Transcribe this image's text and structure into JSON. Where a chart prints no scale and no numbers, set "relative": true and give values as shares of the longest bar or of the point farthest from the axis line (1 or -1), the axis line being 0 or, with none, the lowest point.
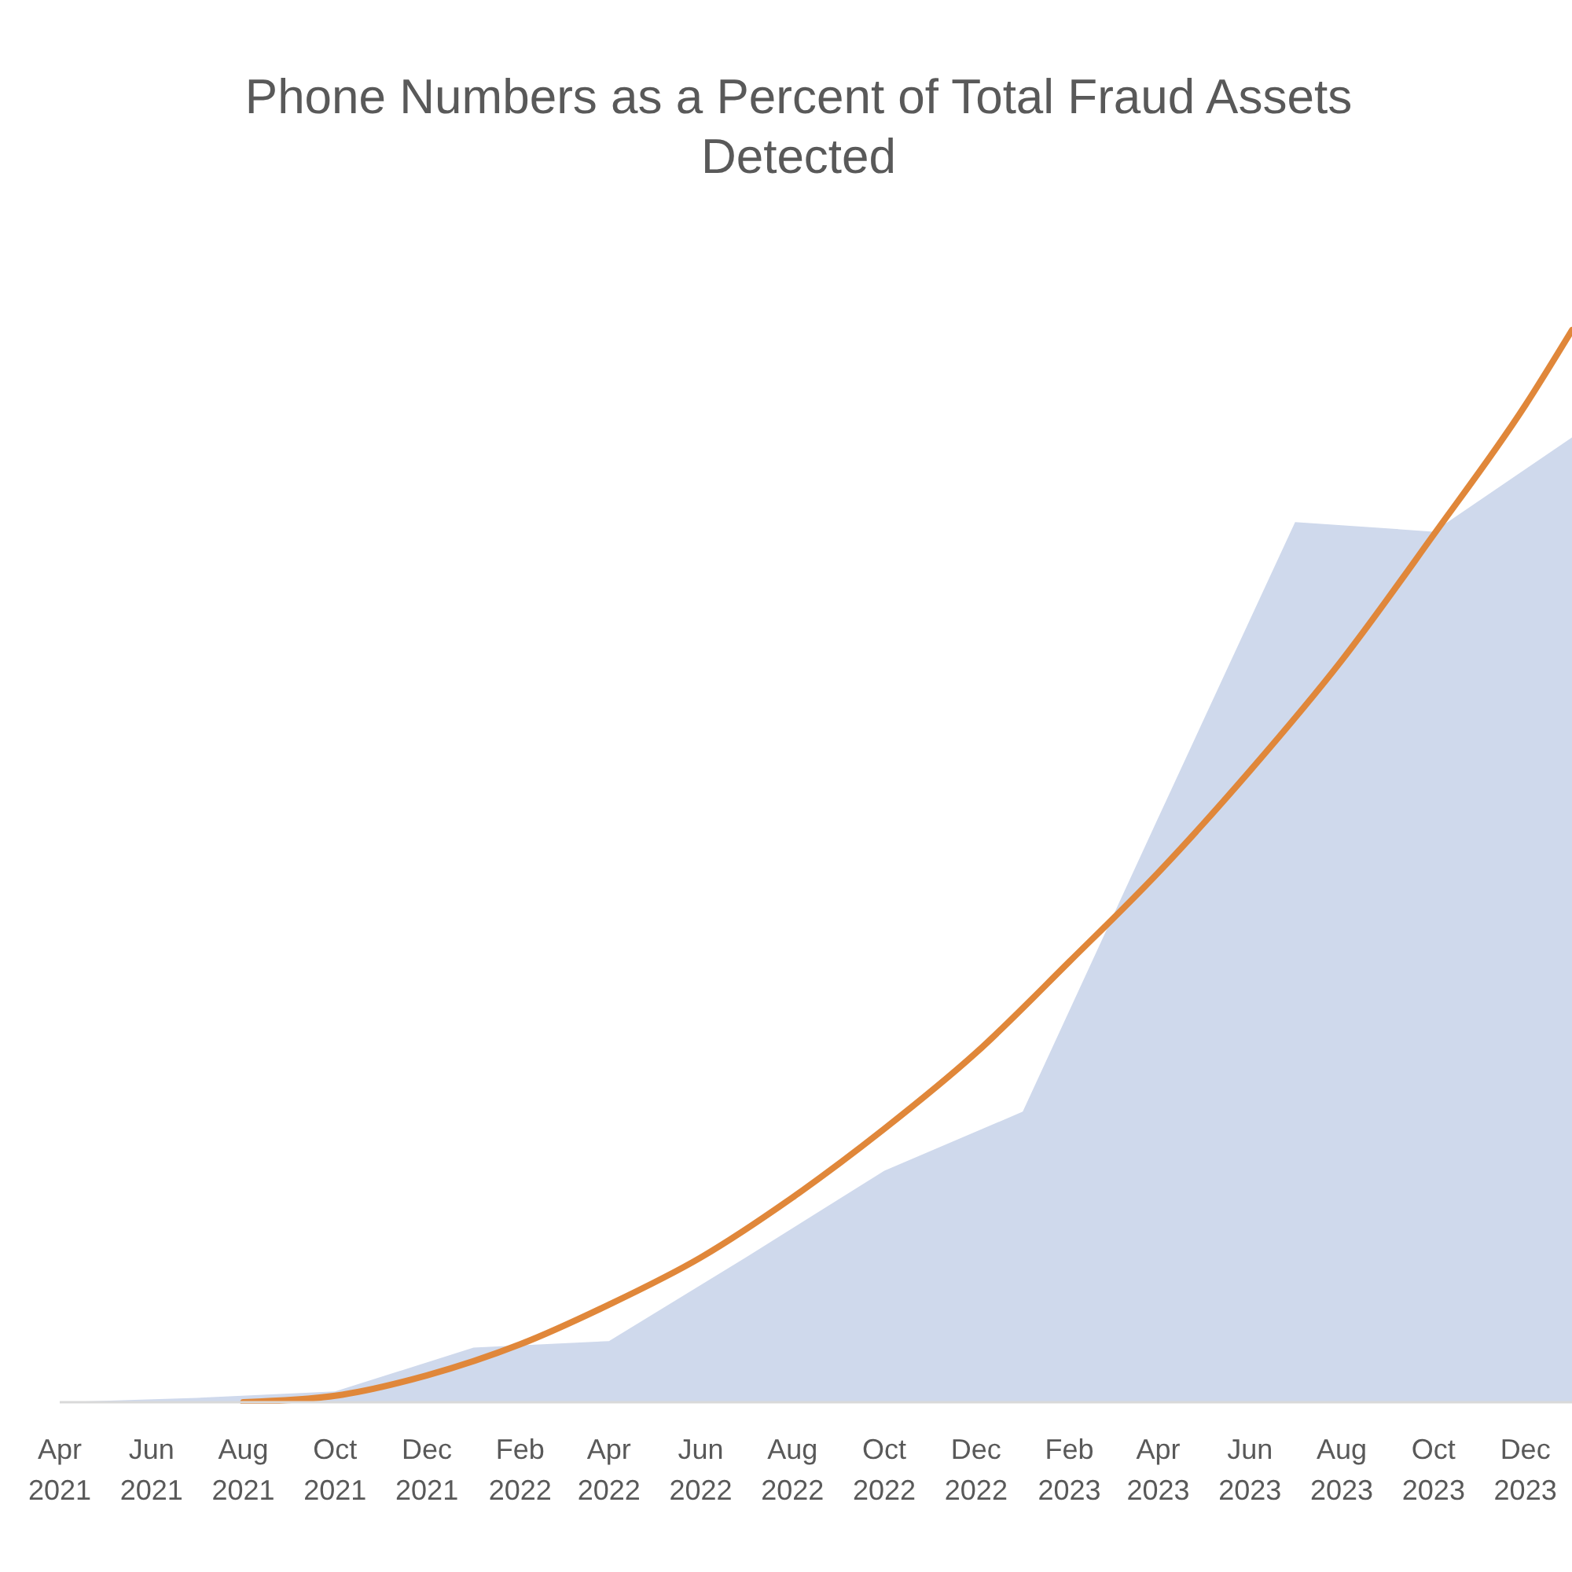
{
  "chart_data": {
    "type": "area",
    "title": "Phone Numbers as a Percent of Total Fraud Assets Detected",
    "relative": true,
    "xlim": [
      "2021-04-01",
      "2024-01-01"
    ],
    "xticks": [
      {
        "value": "2021-04-01",
        "label": "Apr 2021"
      },
      {
        "value": "2021-06-01",
        "label": "Jun 2021"
      },
      {
        "value": "2021-08-01",
        "label": "Aug 2021"
      },
      {
        "value": "2021-10-01",
        "label": "Oct 2021"
      },
      {
        "value": "2021-12-01",
        "label": "Dec 2021"
      },
      {
        "value": "2022-02-01",
        "label": "Feb 2022"
      },
      {
        "value": "2022-04-01",
        "label": "Apr 2022"
      },
      {
        "value": "2022-06-01",
        "label": "Jun 2022"
      },
      {
        "value": "2022-08-01",
        "label": "Aug 2022"
      },
      {
        "value": "2022-10-01",
        "label": "Oct 2022"
      },
      {
        "value": "2022-12-01",
        "label": "Dec 2022"
      },
      {
        "value": "2023-02-01",
        "label": "Feb 2023"
      },
      {
        "value": "2023-04-01",
        "label": "Apr 2023"
      },
      {
        "value": "2023-06-01",
        "label": "Jun 2023"
      },
      {
        "value": "2023-08-01",
        "label": "Aug 2023"
      },
      {
        "value": "2023-10-01",
        "label": "Oct 2023"
      },
      {
        "value": "2023-12-01",
        "label": "Dec 2023"
      }
    ],
    "series": [
      {
        "color": "#cfd9ec",
        "x": [
          "2021-04-01",
          "2021-07-01",
          "2021-10-01",
          "2022-01-01",
          "2022-04-01",
          "2022-07-01",
          "2022-10-01",
          "2023-01-01",
          "2023-04-01",
          "2023-07-01",
          "2023-10-01",
          "2024-01-01"
        ],
        "values": [
          0,
          0.004,
          0.01,
          0.051,
          0.057,
          0.135,
          0.216,
          0.271,
          0.545,
          0.821,
          0.812,
          0.9
        ]
      },
      {
        "type": "line",
        "color": "#e0873a",
        "x": [
          "2021-08-01",
          "2021-10-01",
          "2021-12-01",
          "2022-02-01",
          "2022-04-01",
          "2022-06-01",
          "2022-08-01",
          "2022-10-01",
          "2022-12-01",
          "2023-02-01",
          "2023-04-01",
          "2023-06-01",
          "2023-08-01",
          "2023-10-01",
          "2023-12-01",
          "2024-01-01"
        ],
        "values": [
          0,
          0.006,
          0.025,
          0.054,
          0.091,
          0.135,
          0.191,
          0.255,
          0.326,
          0.411,
          0.494,
          0.589,
          0.692,
          0.809,
          0.93,
          1
        ]
      }
    ]
  }
}
